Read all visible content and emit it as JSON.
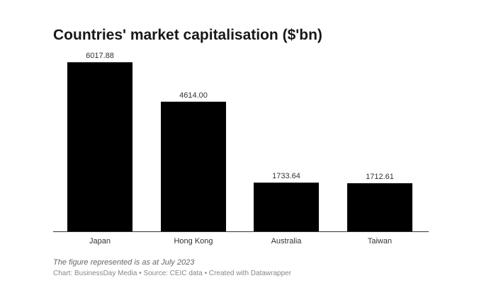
{
  "chart_data": {
    "type": "bar",
    "title": "Countries' market capitalisation ($'bn)",
    "categories": [
      "Japan",
      "Hong Kong",
      "Australia",
      "Taiwan"
    ],
    "values": [
      6017.88,
      4614.0,
      1733.64,
      1712.61
    ],
    "value_labels": [
      "6017.88",
      "4614.00",
      "1733.64",
      "1712.61"
    ],
    "xlabel": "",
    "ylabel": "",
    "ylim": [
      0,
      6017.88
    ],
    "grid": false,
    "bar_color": "#000000"
  },
  "notes": "The figure represented is as at July 2023",
  "credit": "Chart: BusinessDay Media • Source: CEIC data • Created with Datawrapper"
}
